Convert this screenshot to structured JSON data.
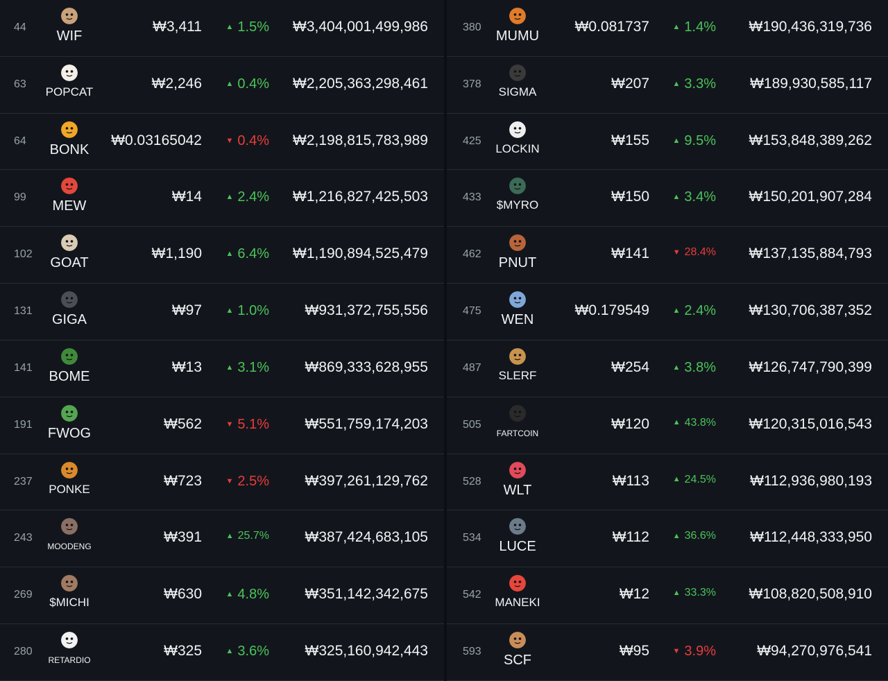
{
  "colors": {
    "up": "#4cc35a",
    "down": "#ea3b3b",
    "background": "#12161c",
    "divider": "#262c34"
  },
  "left": [
    {
      "rank": "44",
      "symbol": "WIF",
      "price": "₩3,411",
      "change": "1.5%",
      "dir": "up",
      "mcap": "₩3,404,001,499,986",
      "icon": "dog-hat-icon",
      "color": "#c9a27a"
    },
    {
      "rank": "63",
      "symbol": "POPCAT",
      "price": "₩2,246",
      "change": "0.4%",
      "dir": "up",
      "mcap": "₩2,205,363,298,461",
      "icon": "cat-icon",
      "color": "#f4efe8"
    },
    {
      "rank": "64",
      "symbol": "BONK",
      "price": "₩0.03165042",
      "change": "0.4%",
      "dir": "down",
      "mcap": "₩2,198,815,783,989",
      "icon": "shiba-icon",
      "color": "#f0a628"
    },
    {
      "rank": "99",
      "symbol": "MEW",
      "price": "₩14",
      "change": "2.4%",
      "dir": "up",
      "mcap": "₩1,216,827,425,503",
      "icon": "cat-face-icon",
      "color": "#e4473c"
    },
    {
      "rank": "102",
      "symbol": "GOAT",
      "price": "₩1,190",
      "change": "6.4%",
      "dir": "up",
      "mcap": "₩1,190,894,525,479",
      "icon": "goat-icon",
      "color": "#d9cbb5"
    },
    {
      "rank": "131",
      "symbol": "GIGA",
      "price": "₩97",
      "change": "1.0%",
      "dir": "up",
      "mcap": "₩931,372,755,556",
      "icon": "giga-face-icon",
      "color": "#4b4f55"
    },
    {
      "rank": "141",
      "symbol": "BOME",
      "price": "₩13",
      "change": "3.1%",
      "dir": "up",
      "mcap": "₩869,333,628,955",
      "icon": "frog-icon",
      "color": "#3f8a3a"
    },
    {
      "rank": "191",
      "symbol": "FWOG",
      "price": "₩562",
      "change": "5.1%",
      "dir": "down",
      "mcap": "₩551,759,174,203",
      "icon": "frog-face-icon",
      "color": "#55a552"
    },
    {
      "rank": "237",
      "symbol": "PONKE",
      "price": "₩723",
      "change": "2.5%",
      "dir": "down",
      "mcap": "₩397,261,129,762",
      "icon": "monkey-icon",
      "color": "#d98a2c"
    },
    {
      "rank": "243",
      "symbol": "MOODENG",
      "price": "₩391",
      "change": "25.7%",
      "dir": "up",
      "mcap": "₩387,424,683,105",
      "icon": "hippo-icon",
      "color": "#8b6f64"
    },
    {
      "rank": "269",
      "symbol": "$MICHI",
      "price": "₩630",
      "change": "4.8%",
      "dir": "up",
      "mcap": "₩351,142,342,675",
      "icon": "cat-photo-icon",
      "color": "#a07a62"
    },
    {
      "rank": "280",
      "symbol": "RETARDIO",
      "price": "₩325",
      "change": "3.6%",
      "dir": "up",
      "mcap": "₩325,160,942,443",
      "icon": "panda-icon",
      "color": "#f2f2f2"
    }
  ],
  "right": [
    {
      "rank": "380",
      "symbol": "MUMU",
      "price": "₩0.081737",
      "change": "1.4%",
      "dir": "up",
      "mcap": "₩190,436,319,736",
      "icon": "bull-icon",
      "color": "#e07b2a"
    },
    {
      "rank": "378",
      "symbol": "SIGMA",
      "price": "₩207",
      "change": "3.3%",
      "dir": "up",
      "mcap": "₩189,930,585,117",
      "icon": "man-portrait-icon",
      "color": "#3a3a3a"
    },
    {
      "rank": "425",
      "symbol": "LOCKIN",
      "price": "₩155",
      "change": "9.5%",
      "dir": "up",
      "mcap": "₩153,848,389,262",
      "icon": "bird-icon",
      "color": "#eeeeee"
    },
    {
      "rank": "433",
      "symbol": "$MYRO",
      "price": "₩150",
      "change": "3.4%",
      "dir": "up",
      "mcap": "₩150,201,907,284",
      "icon": "dog-face-icon",
      "color": "#3b6b57"
    },
    {
      "rank": "462",
      "symbol": "PNUT",
      "price": "₩141",
      "change": "28.4%",
      "dir": "down",
      "mcap": "₩137,135,884,793",
      "icon": "squirrel-icon",
      "color": "#b8643a"
    },
    {
      "rank": "475",
      "symbol": "WEN",
      "price": "₩0.179549",
      "change": "2.4%",
      "dir": "up",
      "mcap": "₩130,706,387,352",
      "icon": "cat-blue-icon",
      "color": "#7fa7d8"
    },
    {
      "rank": "487",
      "symbol": "SLERF",
      "price": "₩254",
      "change": "3.8%",
      "dir": "up",
      "mcap": "₩126,747,790,399",
      "icon": "sloth-icon",
      "color": "#c9934e"
    },
    {
      "rank": "505",
      "symbol": "FARTCOIN",
      "price": "₩120",
      "change": "43.8%",
      "dir": "up",
      "mcap": "₩120,315,016,543",
      "icon": "fartcoin-logo-icon",
      "color": "#2a2a2a"
    },
    {
      "rank": "528",
      "symbol": "WLT",
      "price": "₩113",
      "change": "24.5%",
      "dir": "up",
      "mcap": "₩112,936,980,193",
      "icon": "heart-face-icon",
      "color": "#e14a5a"
    },
    {
      "rank": "534",
      "symbol": "LUCE",
      "price": "₩112",
      "change": "36.6%",
      "dir": "up",
      "mcap": "₩112,448,333,950",
      "icon": "nun-icon",
      "color": "#6c7b8a"
    },
    {
      "rank": "542",
      "symbol": "MANEKI",
      "price": "₩12",
      "change": "33.3%",
      "dir": "up",
      "mcap": "₩108,820,508,910",
      "icon": "lucky-cat-icon",
      "color": "#e8463c"
    },
    {
      "rank": "593",
      "symbol": "SCF",
      "price": "₩95",
      "change": "3.9%",
      "dir": "down",
      "mcap": "₩94,270,976,541",
      "icon": "cat-sitting-icon",
      "color": "#c98d5a"
    }
  ]
}
